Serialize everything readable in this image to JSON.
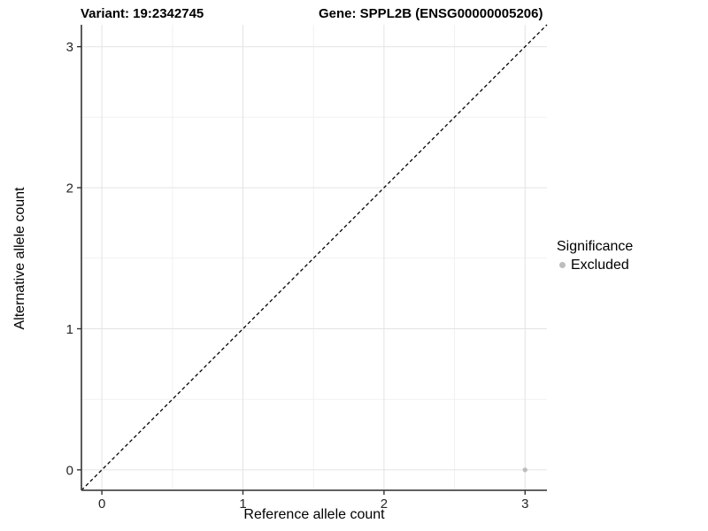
{
  "header": {
    "variant_title": "Variant: 19:2342745",
    "gene_title": "Gene: SPPL2B (ENSG00000005206)"
  },
  "chart_data": {
    "type": "scatter",
    "title_left": "Variant: 19:2342745",
    "title_right": "Gene: SPPL2B (ENSG00000005206)",
    "xlabel": "Reference allele count",
    "ylabel": "Alternative allele count",
    "x_ticks": [
      0,
      1,
      2,
      3
    ],
    "y_ticks": [
      0,
      1,
      2,
      3
    ],
    "x_minor_ticks": [
      0.5,
      1.5,
      2.5
    ],
    "y_minor_ticks": [
      0.5,
      1.5,
      2.5
    ],
    "xlim": [
      -0.145,
      3.155
    ],
    "ylim": [
      -0.145,
      3.155
    ],
    "grid": "major+minor",
    "legend_position": "right",
    "identity_line": {
      "equation": "y = x",
      "style": "dashed",
      "color": "#000000"
    },
    "series": [
      {
        "name": "Excluded",
        "color": "#bdbdbd",
        "points": [
          {
            "x": 3,
            "y": 0
          }
        ]
      }
    ],
    "legend": {
      "title": "Significance",
      "items": [
        {
          "label": "Excluded",
          "color": "#bdbdbd"
        }
      ]
    }
  },
  "colors": {
    "background": "#ffffff",
    "grid_major": "#e3e3e3",
    "grid_minor": "#f1f1f1",
    "axis_line": "#4a4a4a",
    "tick_mark": "#333333",
    "tick_label": "#262626",
    "point": "#bdbdbd",
    "identity_line": "#000000"
  }
}
